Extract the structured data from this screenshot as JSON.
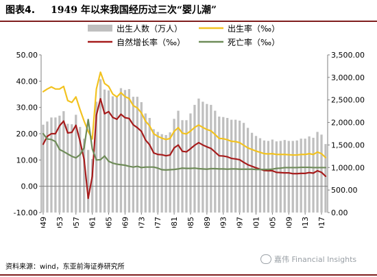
{
  "header": {
    "figure_label": "图表4.",
    "title": "1949 年以来我国经历过三次“婴儿潮”"
  },
  "source": "资料来源：wind，东亚前海证券研究所",
  "watermark": "嘉伟 Financial Insights",
  "colors": {
    "births_bar": "#bfbfbf",
    "birth_rate": "#f2c21f",
    "natural_growth": "#a61b1b",
    "death_rate": "#6e8b58",
    "accent_rule": "#7f1d1d"
  },
  "chart_data": {
    "type": "bar",
    "left_axis": {
      "ylim": [
        -10,
        50
      ],
      "ticks": [
        "-10.00",
        "0.00",
        "10.00",
        "20.00",
        "30.00",
        "40.00",
        "50.00"
      ]
    },
    "right_axis": {
      "ylim": [
        0,
        3500
      ],
      "ticks": [
        "0.00",
        "500.00",
        "1,000.00",
        "1,500.00",
        "2,000.00",
        "2,500.00",
        "3,000.00",
        "3,500.00"
      ]
    },
    "x_tick_labels": [
      "1949",
      "1953",
      "1957",
      "1961",
      "1965",
      "1969",
      "1973",
      "1977",
      "1981",
      "1985",
      "1989",
      "1993",
      "1997",
      "2001",
      "2005",
      "2009",
      "2013",
      "2017"
    ],
    "years": [
      1949,
      1950,
      1951,
      1952,
      1953,
      1954,
      1955,
      1956,
      1957,
      1958,
      1959,
      1960,
      1961,
      1962,
      1963,
      1964,
      1965,
      1966,
      1967,
      1968,
      1969,
      1970,
      1971,
      1972,
      1973,
      1974,
      1975,
      1976,
      1977,
      1978,
      1979,
      1980,
      1981,
      1982,
      1983,
      1984,
      1985,
      1986,
      1987,
      1988,
      1989,
      1990,
      1991,
      1992,
      1993,
      1994,
      1995,
      1996,
      1997,
      1998,
      1999,
      2000,
      2001,
      2002,
      2003,
      2004,
      2005,
      2006,
      2007,
      2008,
      2009,
      2010,
      2011,
      2012,
      2013,
      2014,
      2015,
      2016,
      2017,
      2018
    ],
    "series": [
      {
        "name": "出生人数（万人）",
        "type": "bar",
        "axis": "right",
        "values": [
          1950,
          2020,
          2110,
          2110,
          2150,
          2250,
          1970,
          1960,
          2170,
          1900,
          1640,
          1390,
          1190,
          2460,
          2960,
          2730,
          2710,
          2580,
          2560,
          2760,
          2720,
          2740,
          2570,
          2570,
          2450,
          2200,
          2100,
          1850,
          1790,
          1740,
          1720,
          1780,
          2080,
          2260,
          2050,
          2050,
          2200,
          2390,
          2530,
          2460,
          2410,
          2390,
          2260,
          2130,
          2120,
          2100,
          2060,
          2060,
          2040,
          1990,
          1880,
          1770,
          1700,
          1650,
          1600,
          1590,
          1620,
          1580,
          1590,
          1610,
          1590,
          1590,
          1600,
          1640,
          1640,
          1690,
          1660,
          1790,
          1730,
          1520
        ]
      },
      {
        "name": "出生率（‰）",
        "type": "line",
        "axis": "left",
        "values": [
          36.0,
          37.0,
          37.8,
          37.0,
          37.0,
          38.0,
          32.6,
          31.9,
          34.0,
          29.2,
          24.8,
          20.9,
          18.0,
          37.0,
          43.4,
          39.1,
          38.0,
          35.1,
          34.0,
          35.6,
          34.1,
          33.4,
          30.7,
          29.8,
          27.9,
          24.8,
          23.0,
          20.0,
          19.0,
          18.3,
          17.8,
          18.2,
          20.9,
          22.3,
          20.2,
          19.9,
          21.0,
          22.4,
          23.3,
          22.4,
          21.6,
          21.1,
          19.7,
          18.2,
          18.1,
          17.7,
          17.1,
          17.0,
          16.6,
          15.6,
          14.6,
          14.0,
          13.4,
          12.9,
          12.4,
          12.3,
          12.4,
          12.1,
          12.1,
          12.1,
          12.0,
          11.9,
          11.9,
          12.1,
          12.1,
          12.4,
          12.1,
          13.0,
          12.4,
          10.9
        ]
      },
      {
        "name": "自然增长率（‰）",
        "type": "line",
        "axis": "left",
        "values": [
          16.0,
          19.0,
          20.0,
          20.0,
          23.0,
          24.8,
          20.3,
          20.5,
          23.2,
          17.2,
          10.2,
          -4.6,
          3.8,
          27.0,
          33.3,
          27.6,
          28.4,
          26.2,
          25.5,
          27.4,
          26.1,
          25.8,
          23.4,
          22.3,
          20.9,
          17.6,
          15.8,
          12.7,
          12.1,
          12.0,
          11.6,
          11.9,
          14.6,
          15.7,
          13.3,
          13.1,
          14.3,
          15.6,
          16.6,
          15.7,
          15.0,
          14.4,
          13.0,
          11.6,
          11.5,
          11.2,
          10.6,
          10.4,
          10.1,
          9.1,
          8.2,
          7.6,
          7.0,
          6.5,
          6.0,
          5.9,
          5.9,
          5.3,
          5.2,
          5.1,
          5.1,
          4.8,
          4.8,
          4.9,
          4.9,
          5.2,
          5.0,
          5.9,
          5.3,
          3.8
        ]
      },
      {
        "name": "死亡率（‰）",
        "type": "line",
        "axis": "left",
        "values": [
          20.0,
          18.0,
          17.8,
          17.0,
          14.0,
          13.2,
          12.3,
          11.4,
          10.8,
          12.0,
          14.6,
          25.4,
          14.2,
          10.0,
          10.1,
          11.5,
          9.5,
          8.8,
          8.4,
          8.2,
          8.0,
          7.6,
          7.3,
          7.6,
          7.1,
          7.3,
          7.3,
          7.3,
          6.9,
          6.3,
          6.2,
          6.3,
          6.4,
          6.6,
          6.9,
          6.8,
          6.8,
          6.9,
          6.7,
          6.6,
          6.5,
          6.7,
          6.7,
          6.6,
          6.6,
          6.5,
          6.6,
          6.6,
          6.5,
          6.5,
          6.5,
          6.5,
          6.4,
          6.4,
          6.4,
          6.4,
          6.5,
          6.8,
          6.9,
          7.1,
          7.1,
          7.1,
          7.1,
          7.2,
          7.2,
          7.2,
          7.1,
          7.1,
          7.1,
          7.1
        ]
      }
    ],
    "legend": {
      "placement": "top",
      "items": [
        {
          "label": "出生人数（万人）",
          "kind": "bar",
          "color": "#bfbfbf"
        },
        {
          "label": "出生率（‰）",
          "kind": "line",
          "color": "#f2c21f"
        },
        {
          "label": "自然增长率（‰）",
          "kind": "line",
          "color": "#a61b1b"
        },
        {
          "label": "死亡率（‰）",
          "kind": "line",
          "color": "#6e8b58"
        }
      ]
    },
    "grid": false
  }
}
